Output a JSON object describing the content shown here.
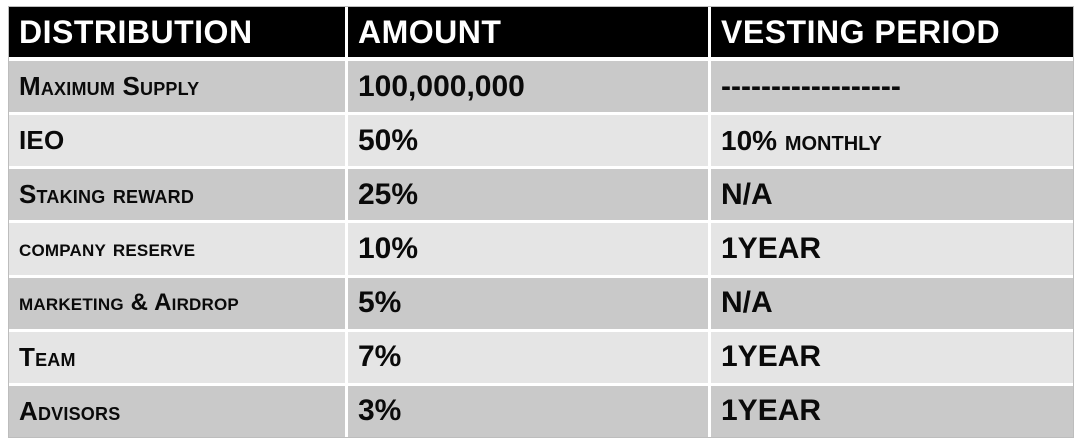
{
  "table": {
    "headers": [
      "DISTRIBUTION",
      "AMOUNT",
      "VESTING PERIOD"
    ],
    "rows": [
      {
        "distribution": "Maximum Supply",
        "amount": "100,000,000",
        "vesting": "------------------"
      },
      {
        "distribution": "IEO",
        "amount": "50%",
        "vesting": "10% monthly"
      },
      {
        "distribution": "Staking reward",
        "amount": "25%",
        "vesting": "N/A"
      },
      {
        "distribution": "company reserve",
        "amount": "10%",
        "vesting": "1YEAR"
      },
      {
        "distribution": "marketing & Airdrop",
        "amount": "5%",
        "vesting": "N/A"
      },
      {
        "distribution": "Team",
        "amount": "7%",
        "vesting": "1YEAR"
      },
      {
        "distribution": "Advisors",
        "amount": "3%",
        "vesting": "1YEAR"
      }
    ]
  },
  "colors": {
    "header_bg": "#000000",
    "header_text": "#ffffff",
    "row_dark": "#c9c9c9",
    "row_light": "#e5e5e5"
  }
}
